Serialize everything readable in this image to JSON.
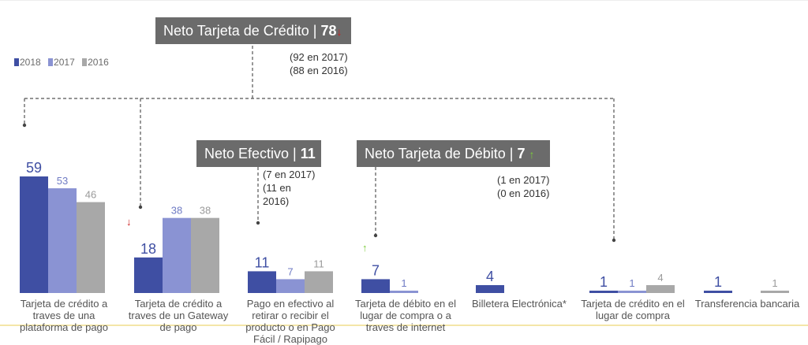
{
  "headers": {
    "credit": {
      "label": "Neto Tarjeta de Crédito |",
      "value": "78",
      "arrow": "↓",
      "arrow_color": "#cc1f1f"
    },
    "cash": {
      "label": "Neto Efectivo |",
      "value": "11"
    },
    "debit": {
      "label": "Neto Tarjeta de Débito |",
      "value": "7",
      "arrow": "↑",
      "arrow_color": "#7ccb3c"
    }
  },
  "notes": {
    "credit": "(92 en 2017)\n(88 en 2016)",
    "cash": "(7 en 2017)\n(11 en\n2016)",
    "debit": "(1 en 2017)\n(0 en 2016)"
  },
  "side_arrows": {
    "gateway": {
      "symbol": "↓",
      "color": "#cc1f1f"
    },
    "debit": {
      "symbol": "↑",
      "color": "#7ccb3c"
    }
  },
  "chart_data": {
    "type": "bar",
    "categories": [
      "Tarjeta de crédito a traves de una plataforma de pago",
      "Tarjeta de crédito a traves de un Gateway de pago",
      "Pago en efectivo al retirar o recibir el producto o en Pago Fácil / Rapipago",
      "Tarjeta de débito en el lugar de compra o a traves de internet",
      "Billetera Electrónica*",
      "Tarjeta de crédito en el lugar de compra",
      "Transferencia bancaria"
    ],
    "series": [
      {
        "name": "2018",
        "color": "#3f4fa3",
        "values": [
          59,
          18,
          11,
          7,
          4,
          1,
          1
        ]
      },
      {
        "name": "2017",
        "color": "#8a93d3",
        "values": [
          53,
          38,
          7,
          1,
          null,
          1,
          null
        ]
      },
      {
        "name": "2016",
        "color": "#a8a8a8",
        "values": [
          46,
          38,
          11,
          null,
          null,
          4,
          1
        ]
      }
    ],
    "ylim": [
      0,
      62
    ],
    "legend": "top-left"
  }
}
